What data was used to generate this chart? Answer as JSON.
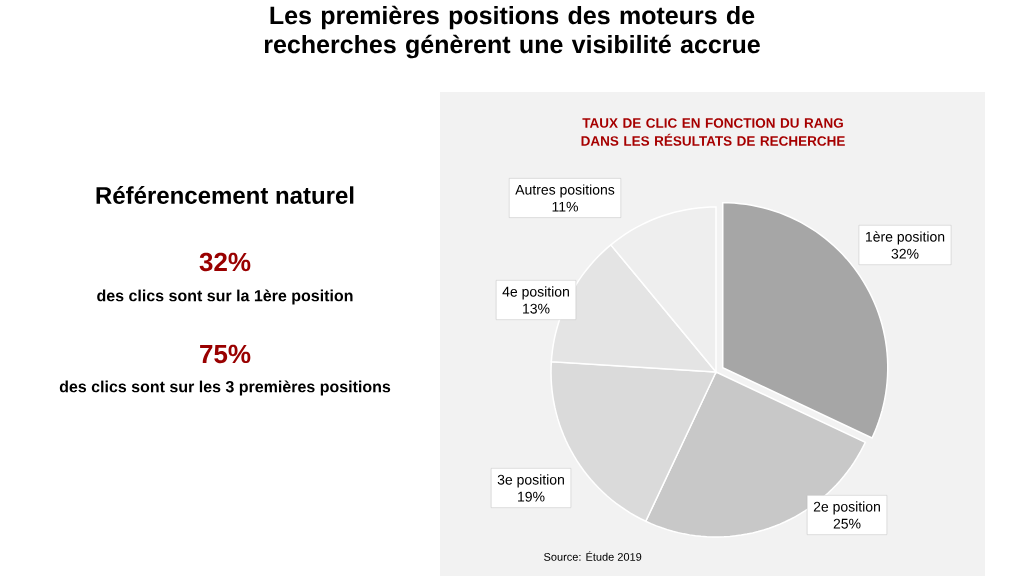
{
  "chart_data": {
    "type": "pie",
    "title": "Les premières positions des moteurs de recherches génèrent une visibilité accrue",
    "subtitle": "TAUX DE CLIC EN FONCTION DU RANG DANS LES RÉSULTATS DE RECHERCHE",
    "categories": [
      "1ère position",
      "2e position",
      "3e position",
      "4e position",
      "Autres positions"
    ],
    "values": [
      32,
      25,
      19,
      13,
      11
    ],
    "value_labels": [
      "32%",
      "25%",
      "19%",
      "13%",
      "11%"
    ],
    "colors": [
      "#a6a6a6",
      "#c8c8c8",
      "#dadada",
      "#e4e4e4",
      "#eeeeee"
    ],
    "annotations": [
      "Référencement naturel",
      "32%",
      "des clics sont sur la 1ère position",
      "75%",
      "des clics sont sur les 3 premières positions",
      "Source: Étude 2019"
    ]
  }
}
